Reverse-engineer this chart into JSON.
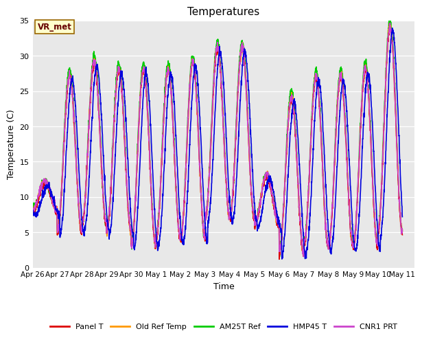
{
  "title": "Temperatures",
  "xlabel": "Time",
  "ylabel": "Temperature (C)",
  "ylim": [
    0,
    35
  ],
  "annotation": "VR_met",
  "plot_bg": "#e8e8e8",
  "series_order": [
    "Panel T",
    "Old Ref Temp",
    "AM25T Ref",
    "HMP45 T",
    "CNR1 PRT"
  ],
  "series_colors": {
    "Panel T": "#dd0000",
    "Old Ref Temp": "#ff9900",
    "AM25T Ref": "#00cc00",
    "HMP45 T": "#0000dd",
    "CNR1 PRT": "#cc44cc"
  },
  "series_lw": {
    "Panel T": 1.2,
    "Old Ref Temp": 1.2,
    "AM25T Ref": 1.2,
    "HMP45 T": 1.2,
    "CNR1 PRT": 1.2
  },
  "xtick_labels": [
    "Apr 26",
    "Apr 27",
    "Apr 28",
    "Apr 29",
    "Apr 30",
    "May 1",
    "May 2",
    "May 3",
    "May 4",
    "May 5",
    "May 6",
    "May 7",
    "May 8",
    "May 9",
    "May 10",
    "May 11"
  ],
  "xtick_positions": [
    0,
    1,
    2,
    3,
    4,
    5,
    6,
    7,
    8,
    9,
    10,
    11,
    12,
    13,
    14,
    15
  ],
  "ytick_labels": [
    "0",
    "5",
    "10",
    "15",
    "20",
    "25",
    "30",
    "35"
  ],
  "ytick_positions": [
    0,
    5,
    10,
    15,
    20,
    25,
    30,
    35
  ],
  "grid_color": "#d0d0d0",
  "annotation_bg": "#ffffcc",
  "annotation_edge": "#996600",
  "annotation_text_color": "#660000"
}
